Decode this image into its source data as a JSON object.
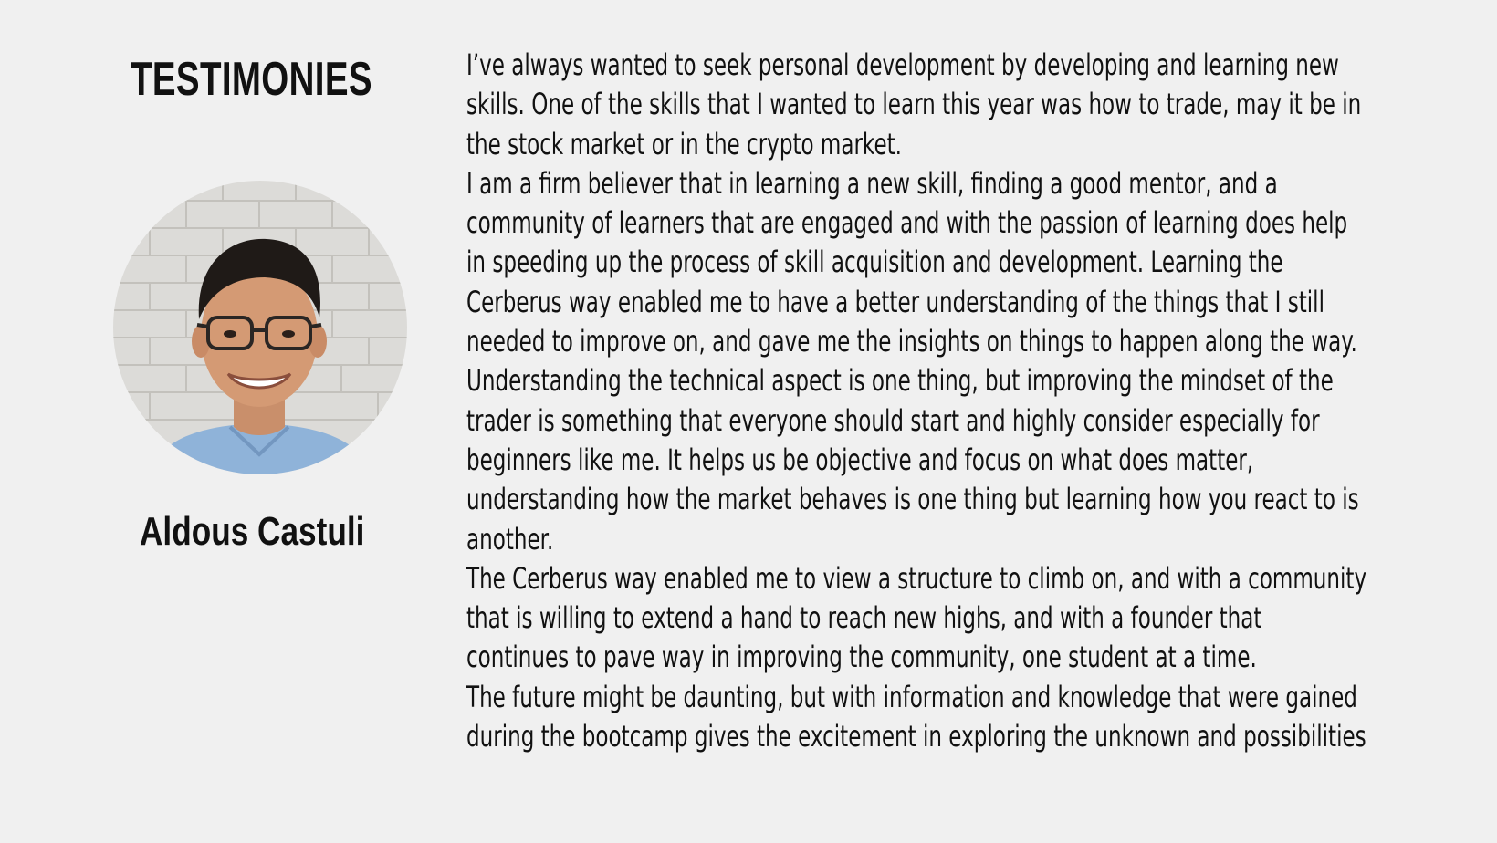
{
  "heading": "TESTIMONIES",
  "person": {
    "name": "Aldous Castuli"
  },
  "testimony_lines": [
    "I’ve always wanted to seek personal development by developing and learning new",
    "skills. One of the skills that I wanted to learn this year was how to trade, may it be in",
    "the stock market or in the crypto market.",
    "I am a firm believer that in learning a new skill, finding a good mentor, and a",
    "community of learners that are engaged and with the passion of learning does help",
    "in speeding up the process of skill acquisition and development. Learning the",
    "Cerberus way enabled me to have a better understanding of the things that I still",
    "needed to improve on, and gave me the insights on things to happen along the way.",
    "Understanding the technical aspect is one thing, but improving the mindset of the",
    "trader is something that everyone should start and highly consider especially for",
    "beginners like me. It helps us be objective and focus on what does matter,",
    "understanding how the market behaves is one thing but learning how you react to is",
    "another.",
    "The Cerberus way enabled me to view a structure to climb on, and with a community",
    "that is willing to extend a hand to reach new highs, and with a founder that",
    "continues to pave way in improving the community, one student at a time.",
    "The future might be daunting, but with information and knowledge that were gained",
    "during the bootcamp gives the excitement in exploring the unknown and possibilities"
  ]
}
